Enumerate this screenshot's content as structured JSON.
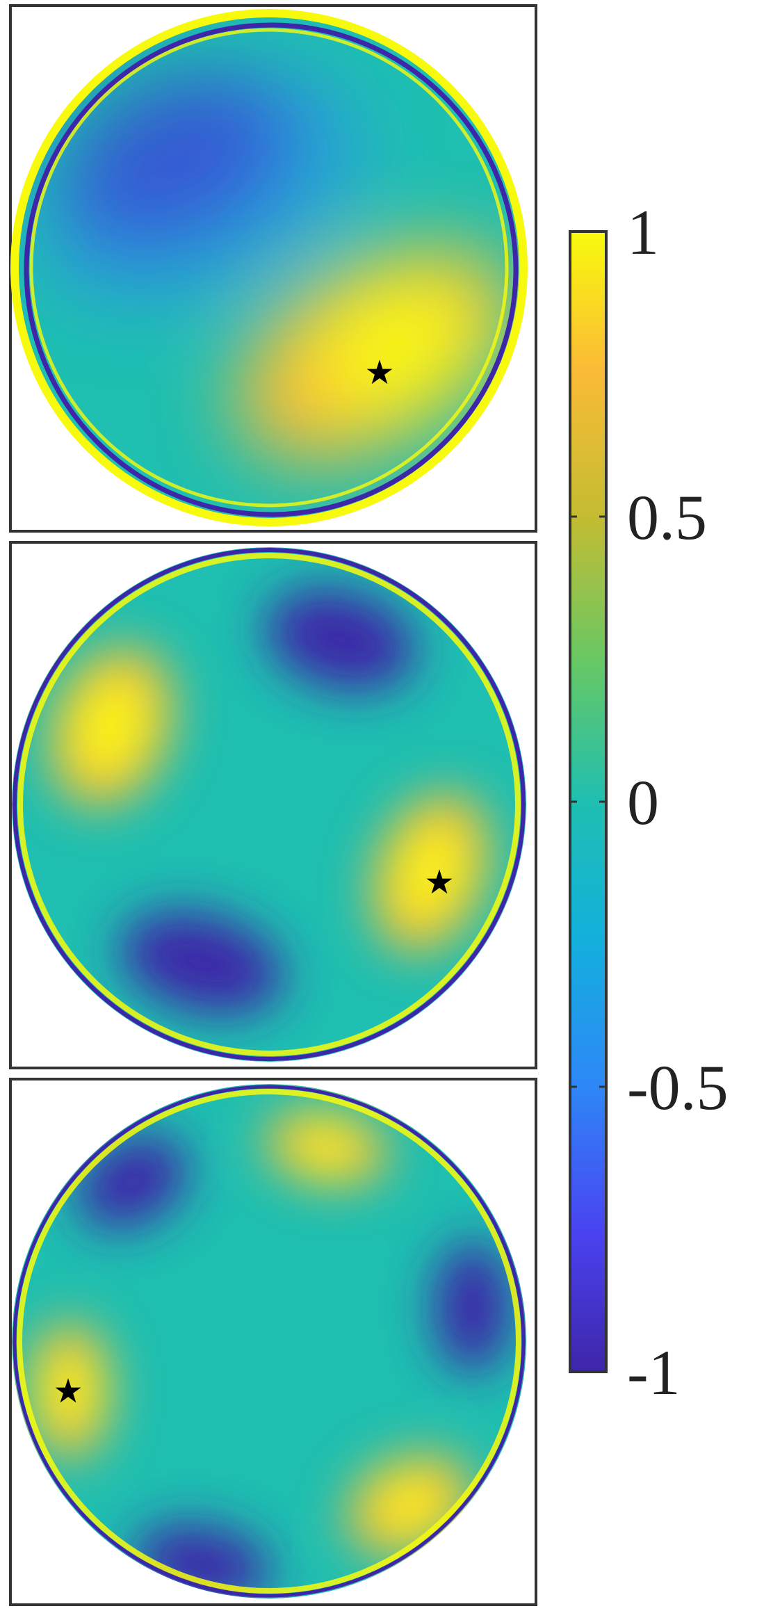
{
  "chart_data": {
    "type": "heatmap",
    "description_free": true,
    "panels": [
      {
        "mode": "dipole",
        "lobes": 1,
        "max_marker": "★",
        "notes": "positive lobe lower-right, negative lobe upper-left, ring artifacts at rim"
      },
      {
        "mode": "quadrupole",
        "lobes": 2,
        "max_marker": "★"
      },
      {
        "mode": "hexapole",
        "lobes": 3,
        "max_marker": "★"
      }
    ],
    "colorbar": {
      "range": [
        -1,
        1
      ],
      "ticks": [
        1,
        0.5,
        0,
        -0.5,
        -1
      ],
      "tick_labels": [
        "1",
        "0.5",
        "0",
        "-0.5",
        "-1"
      ],
      "colormap": "parula",
      "colors": [
        "#3e26a8",
        "#4a42f0",
        "#2e87f7",
        "#13b0dc",
        "#1fbfb1",
        "#65c866",
        "#c4bc32",
        "#fbbb36",
        "#f8fa0d"
      ]
    },
    "legend": "none",
    "grid": false
  }
}
